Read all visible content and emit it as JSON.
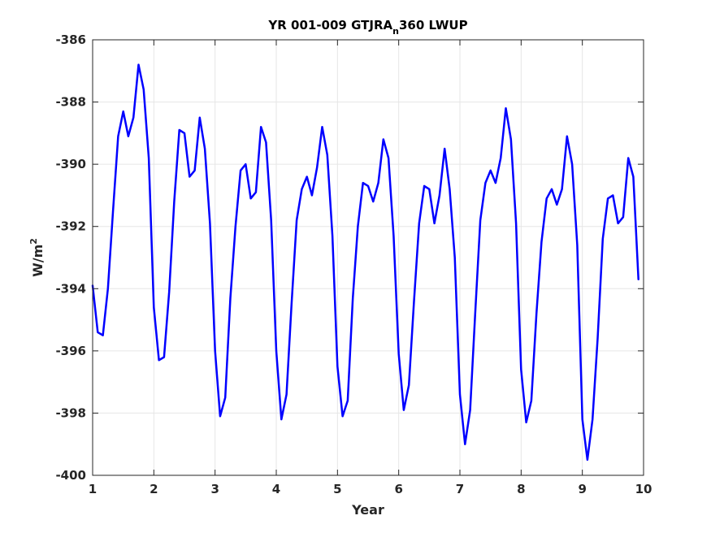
{
  "chart_data": {
    "type": "line",
    "title_main": "YR 001-009 GTJRA",
    "title_sub": "n",
    "title_tail": "360 LWUP",
    "xlabel": "Year",
    "ylabel_base": "W/m",
    "ylabel_sup": "2",
    "xlim": [
      1,
      10
    ],
    "ylim": [
      -400,
      -386
    ],
    "xticks": [
      1,
      2,
      3,
      4,
      5,
      6,
      7,
      8,
      9,
      10
    ],
    "yticks": [
      -400,
      -398,
      -396,
      -394,
      -392,
      -390,
      -388,
      -386
    ],
    "xtick_labels": [
      "1",
      "2",
      "3",
      "4",
      "5",
      "6",
      "7",
      "8",
      "9",
      "10"
    ],
    "ytick_labels": [
      "-400",
      "-398",
      "-396",
      "-394",
      "-392",
      "-390",
      "-388",
      "-386"
    ],
    "grid": true,
    "line_color": "#0000ff",
    "series": [
      {
        "x": [
          1.0,
          1.083,
          1.167,
          1.25,
          1.333,
          1.417,
          1.5,
          1.583,
          1.667,
          1.75,
          1.833,
          1.917,
          2.0,
          2.083,
          2.167,
          2.25,
          2.333,
          2.417,
          2.5,
          2.583,
          2.667,
          2.75,
          2.833,
          2.917,
          3.0,
          3.083,
          3.167,
          3.25,
          3.333,
          3.417,
          3.5,
          3.583,
          3.667,
          3.75,
          3.833,
          3.917,
          4.0,
          4.083,
          4.167,
          4.25,
          4.333,
          4.417,
          4.5,
          4.583,
          4.667,
          4.75,
          4.833,
          4.917,
          5.0,
          5.083,
          5.167,
          5.25,
          5.333,
          5.417,
          5.5,
          5.583,
          5.667,
          5.75,
          5.833,
          5.917,
          6.0,
          6.083,
          6.167,
          6.25,
          6.333,
          6.417,
          6.5,
          6.583,
          6.667,
          6.75,
          6.833,
          6.917,
          7.0,
          7.083,
          7.167,
          7.25,
          7.333,
          7.417,
          7.5,
          7.583,
          7.667,
          7.75,
          7.833,
          7.917,
          8.0,
          8.083,
          8.167,
          8.25,
          8.333,
          8.417,
          8.5,
          8.583,
          8.667,
          8.75,
          8.833,
          8.917,
          9.0,
          9.083,
          9.167,
          9.25,
          9.333,
          9.417,
          9.5,
          9.583,
          9.667,
          9.75,
          9.833,
          9.917
        ],
        "y": [
          -393.9,
          -395.4,
          -395.5,
          -394.0,
          -391.5,
          -389.1,
          -388.3,
          -389.1,
          -388.5,
          -386.8,
          -387.6,
          -389.8,
          -394.6,
          -396.3,
          -396.2,
          -394.1,
          -391.2,
          -388.9,
          -389.0,
          -390.4,
          -390.2,
          -388.5,
          -389.5,
          -391.9,
          -396.0,
          -398.1,
          -397.5,
          -394.3,
          -392.0,
          -390.2,
          -390.0,
          -391.1,
          -390.9,
          -388.8,
          -389.3,
          -391.8,
          -396.0,
          -398.2,
          -397.4,
          -394.5,
          -391.8,
          -390.8,
          -390.4,
          -391.0,
          -390.1,
          -388.8,
          -389.7,
          -392.3,
          -396.5,
          -398.1,
          -397.6,
          -394.3,
          -392.0,
          -390.6,
          -390.7,
          -391.2,
          -390.6,
          -389.2,
          -389.8,
          -392.3,
          -396.1,
          -397.9,
          -397.1,
          -394.4,
          -391.9,
          -390.7,
          -390.8,
          -391.9,
          -391.0,
          -389.5,
          -390.8,
          -393.0,
          -397.4,
          -399.0,
          -397.9,
          -394.8,
          -391.8,
          -390.6,
          -390.2,
          -390.6,
          -389.8,
          -388.2,
          -389.2,
          -391.9,
          -396.6,
          -398.3,
          -397.6,
          -394.8,
          -392.5,
          -391.1,
          -390.8,
          -391.3,
          -390.8,
          -389.1,
          -390.0,
          -392.6,
          -398.2,
          -399.5,
          -398.2,
          -395.6,
          -392.4,
          -391.1,
          -391.0,
          -391.9,
          -391.7,
          -389.8,
          -390.4,
          -393.7
        ]
      }
    ]
  }
}
